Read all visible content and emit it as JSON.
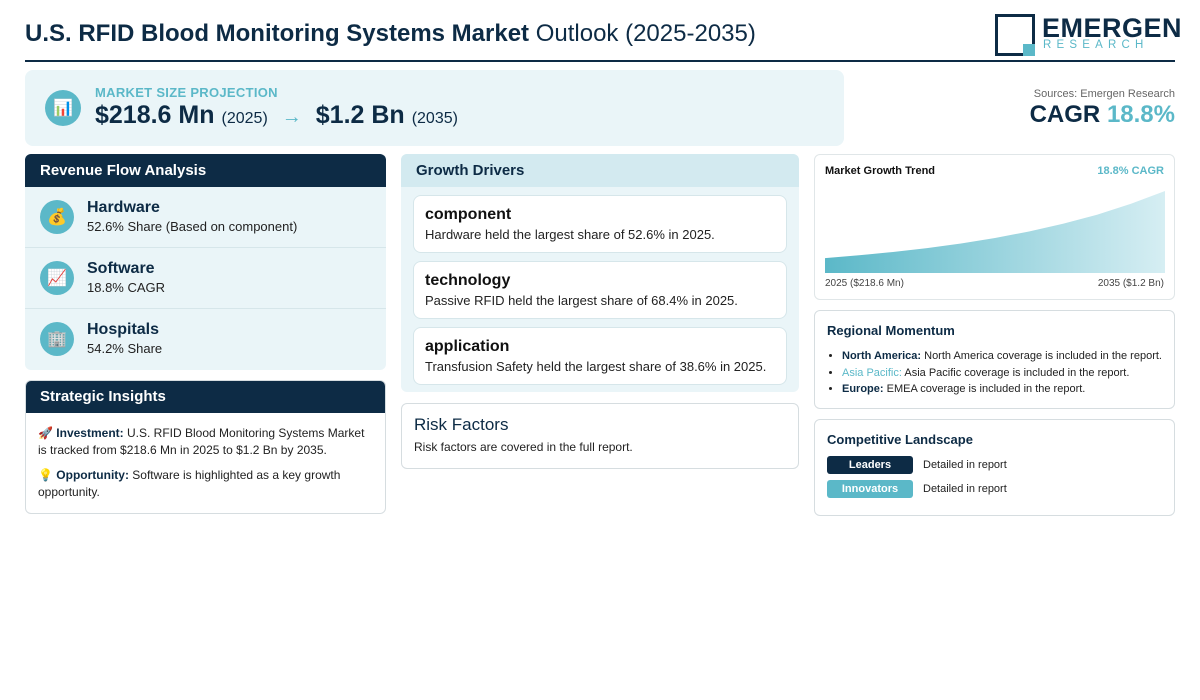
{
  "header": {
    "title_bold": "U.S. RFID Blood Monitoring Systems Market",
    "title_rest": " Outlook (2025-2035)",
    "logo_name": "EMERGEN",
    "logo_sub": "RESEARCH"
  },
  "projection": {
    "label": "MARKET SIZE PROJECTION",
    "icon": "bar-chart-icon",
    "start_value": "$218.6 Mn",
    "start_year": "(2025)",
    "arrow": "→",
    "end_value": "$1.2 Bn",
    "end_year": "(2035)"
  },
  "summary": {
    "sources": "Sources: Emergen Research",
    "cagr_label": "CAGR",
    "cagr_value": "18.8%"
  },
  "revenue_flow": {
    "title": "Revenue Flow Analysis",
    "items": [
      {
        "icon": "money-bag-icon",
        "glyph": "💰",
        "name": "Hardware",
        "desc": "52.6% Share (Based on component)"
      },
      {
        "icon": "chart-up-icon",
        "glyph": "📈",
        "name": "Software",
        "desc": "18.8% CAGR"
      },
      {
        "icon": "building-icon",
        "glyph": "🏢",
        "name": "Hospitals",
        "desc": "54.2% Share"
      }
    ]
  },
  "insights": {
    "title": "Strategic Insights",
    "investment_label": "Investment:",
    "investment_text": "U.S. RFID Blood Monitoring Systems Market is tracked from $218.6 Mn in 2025 to $1.2 Bn by 2035.",
    "opportunity_label": "Opportunity:",
    "opportunity_text": "Software is highlighted as a key growth opportunity."
  },
  "drivers": {
    "title": "Growth Drivers",
    "items": [
      {
        "name": "component",
        "desc": "Hardware held the largest share of 52.6% in 2025."
      },
      {
        "name": "technology",
        "desc": "Passive RFID held the largest share of 68.4% in 2025."
      },
      {
        "name": "application",
        "desc": "Transfusion Safety held the largest share of 38.6% in 2025."
      }
    ]
  },
  "risk": {
    "title": "Risk Factors",
    "desc": "Risk factors are covered in the full report."
  },
  "trend": {
    "title": "Market Growth Trend",
    "cagr": "18.8% CAGR",
    "start_label": "2025 ($218.6 Mn)",
    "end_label": "2035 ($1.2 Bn)"
  },
  "chart_data": {
    "type": "area",
    "x": [
      2025,
      2035
    ],
    "values": [
      218.6,
      1200
    ],
    "unit": "USD Mn",
    "title": "Market Growth Trend"
  },
  "regional": {
    "title": "Regional Momentum",
    "items": [
      {
        "region": "North America:",
        "text": "North America coverage is included in the report."
      },
      {
        "region": "Asia Pacific:",
        "text": "Asia Pacific coverage is included in the report."
      },
      {
        "region": "Europe:",
        "text": "EMEA coverage is included in the report."
      }
    ]
  },
  "competitive": {
    "title": "Competitive Landscape",
    "rows": [
      {
        "tag": "Leaders",
        "desc": "Detailed in report"
      },
      {
        "tag": "Innovators",
        "desc": "Detailed in report"
      }
    ]
  },
  "colors": {
    "navy": "#0d2b45",
    "teal": "#5bb8c8",
    "panel": "#eaf5f8"
  }
}
